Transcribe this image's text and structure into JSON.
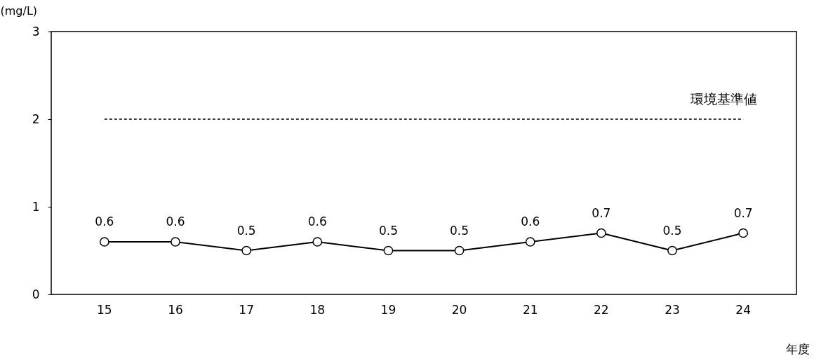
{
  "chart_data": {
    "type": "line",
    "ylabel": "(mg/L)",
    "xlabel": "年度",
    "categories": [
      "15",
      "16",
      "17",
      "18",
      "19",
      "20",
      "21",
      "22",
      "23",
      "24"
    ],
    "series": [
      {
        "color": "#000000",
        "values": [
          0.6,
          0.6,
          0.5,
          0.6,
          0.5,
          0.5,
          0.6,
          0.7,
          0.5,
          0.7
        ]
      }
    ],
    "ylim": [
      0,
      3
    ],
    "yticks": [
      0,
      1,
      2,
      3
    ],
    "ref_lines": [
      {
        "axis": "y",
        "value": 2,
        "label": "環境基準値",
        "color": "#000000",
        "line_style": "dashed"
      }
    ],
    "data_labels": true,
    "marker": "circle",
    "line_style": "solid",
    "grid": false
  }
}
